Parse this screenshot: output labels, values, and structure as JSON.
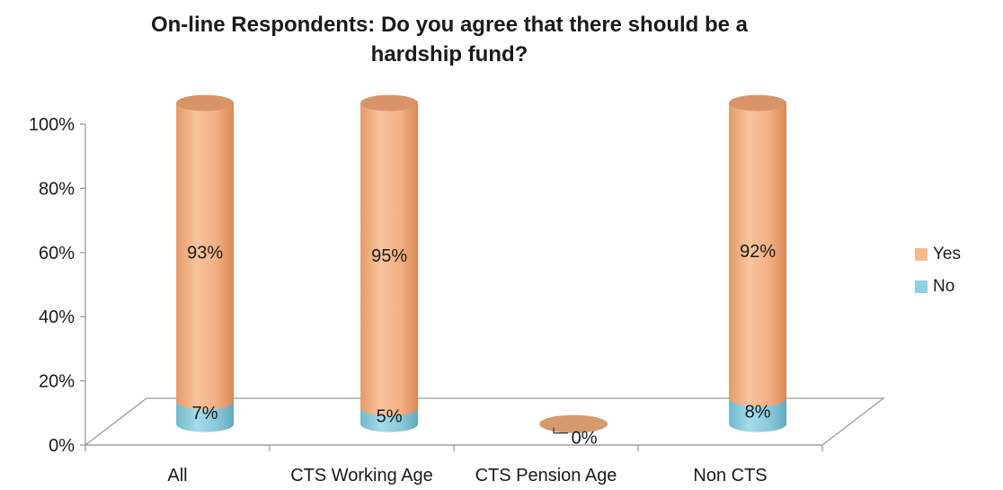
{
  "chart_data": {
    "type": "bar",
    "title_line1": "On-line Respondents: Do you agree that there should be a",
    "title_line2": "hardship fund?",
    "categories": [
      "All",
      "CTS Working Age",
      "CTS Pension Age",
      "Non CTS"
    ],
    "series": [
      {
        "name": "No",
        "values": [
          7,
          5,
          0,
          8
        ],
        "labels": [
          "7%",
          "5%",
          "0%",
          "8%"
        ],
        "color": "#8ecfe0"
      },
      {
        "name": "Yes",
        "values": [
          93,
          95,
          0,
          92
        ],
        "labels": [
          "93%",
          "95%",
          "",
          "92%"
        ],
        "color": "#f6b98a"
      }
    ],
    "stacked": true,
    "ylim": [
      0,
      100
    ],
    "yticks": [
      "0%",
      "20%",
      "40%",
      "60%",
      "80%",
      "100%"
    ],
    "xlabel": "",
    "ylabel": "",
    "legend_position": "right",
    "grid": false
  }
}
